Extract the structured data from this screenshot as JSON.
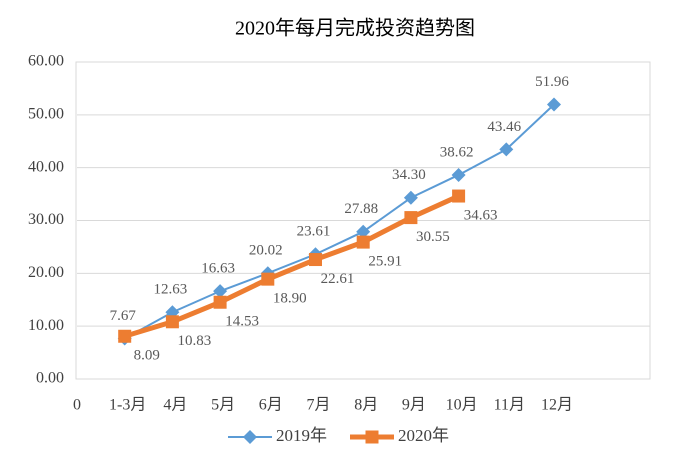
{
  "chart_data": {
    "type": "line",
    "title": "2020年每月完成投资趋势图",
    "categories": [
      "0",
      "1-3月",
      "4月",
      "5月",
      "6月",
      "7月",
      "8月",
      "9月",
      "10月",
      "11月",
      "12月"
    ],
    "series": [
      {
        "name": "2019年",
        "color": "#5b9bd5",
        "marker": "diamond",
        "values": [
          null,
          7.67,
          12.63,
          16.63,
          20.02,
          23.61,
          27.88,
          34.3,
          38.62,
          43.46,
          51.96
        ],
        "value_labels": [
          null,
          "7.67",
          "12.63",
          "16.63",
          "20.02",
          "23.61",
          "27.88",
          "34.30",
          "38.62",
          "43.46",
          "51.96"
        ]
      },
      {
        "name": "2020年",
        "color": "#ed7d31",
        "marker": "square",
        "values": [
          null,
          8.09,
          10.83,
          14.53,
          18.9,
          22.61,
          25.91,
          30.55,
          34.63,
          null,
          null
        ],
        "value_labels": [
          null,
          "8.09",
          "10.83",
          "14.53",
          "18.90",
          "22.61",
          "25.91",
          "30.55",
          "34.63",
          null,
          null
        ]
      }
    ],
    "ylim": [
      0,
      60
    ],
    "yticks": [
      {
        "value": 0,
        "label": "0.00"
      },
      {
        "value": 10,
        "label": "10.00"
      },
      {
        "value": 20,
        "label": "20.00"
      },
      {
        "value": 30,
        "label": "30.00"
      },
      {
        "value": 40,
        "label": "40.00"
      },
      {
        "value": 50,
        "label": "50.00"
      },
      {
        "value": 60,
        "label": "60.00"
      }
    ],
    "grid": true,
    "legend": "bottom"
  }
}
